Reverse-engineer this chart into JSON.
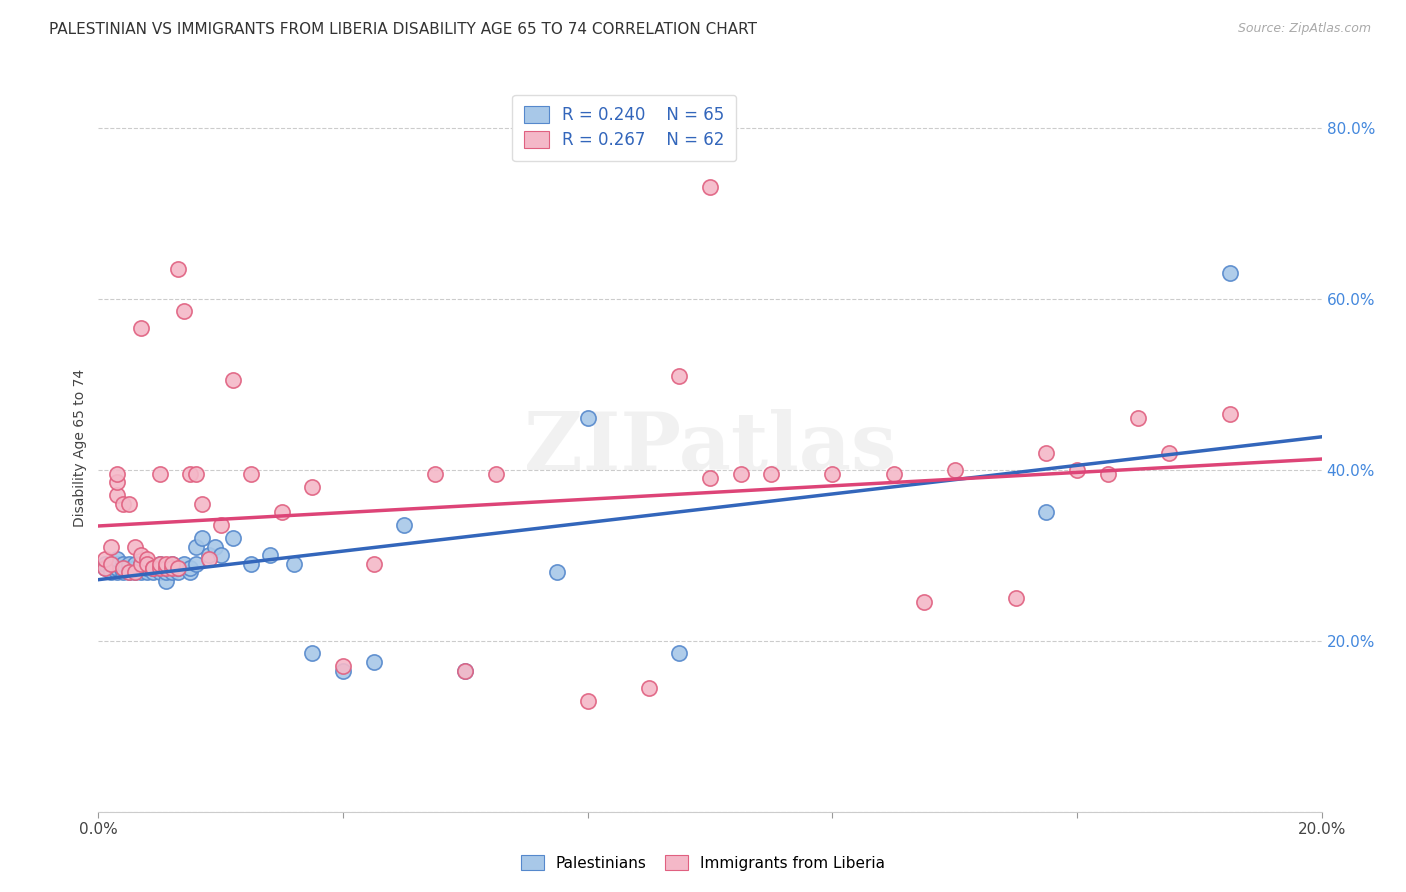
{
  "title": "PALESTINIAN VS IMMIGRANTS FROM LIBERIA DISABILITY AGE 65 TO 74 CORRELATION CHART",
  "source": "Source: ZipAtlas.com",
  "ylabel": "Disability Age 65 to 74",
  "watermark": "ZIPatlas",
  "xlim": [
    0.0,
    0.2
  ],
  "ylim": [
    0.0,
    0.85
  ],
  "xticks": [
    0.0,
    0.04,
    0.08,
    0.12,
    0.16,
    0.2
  ],
  "xticklabels": [
    "0.0%",
    "",
    "",
    "",
    "",
    "20.0%"
  ],
  "yticks": [
    0.0,
    0.2,
    0.4,
    0.6,
    0.8
  ],
  "yticklabels": [
    "",
    "20.0%",
    "40.0%",
    "60.0%",
    "80.0%"
  ],
  "blue_R": 0.24,
  "blue_N": 65,
  "pink_R": 0.267,
  "pink_N": 62,
  "legend_label_blue": "Palestinians",
  "legend_label_pink": "Immigrants from Liberia",
  "blue_color": "#a8c8e8",
  "pink_color": "#f4b8c8",
  "blue_edge_color": "#5588cc",
  "pink_edge_color": "#e06080",
  "blue_line_color": "#3366bb",
  "pink_line_color": "#dd4477",
  "blue_x": [
    0.001,
    0.001,
    0.002,
    0.002,
    0.002,
    0.003,
    0.003,
    0.003,
    0.003,
    0.003,
    0.004,
    0.004,
    0.004,
    0.004,
    0.005,
    0.005,
    0.005,
    0.005,
    0.006,
    0.006,
    0.006,
    0.006,
    0.007,
    0.007,
    0.007,
    0.007,
    0.008,
    0.008,
    0.008,
    0.009,
    0.009,
    0.009,
    0.01,
    0.01,
    0.01,
    0.011,
    0.011,
    0.011,
    0.012,
    0.012,
    0.013,
    0.013,
    0.014,
    0.015,
    0.015,
    0.016,
    0.016,
    0.017,
    0.018,
    0.019,
    0.02,
    0.022,
    0.025,
    0.028,
    0.032,
    0.035,
    0.04,
    0.045,
    0.05,
    0.06,
    0.075,
    0.08,
    0.095,
    0.155,
    0.185
  ],
  "blue_y": [
    0.285,
    0.29,
    0.285,
    0.28,
    0.29,
    0.28,
    0.285,
    0.285,
    0.29,
    0.295,
    0.28,
    0.285,
    0.285,
    0.29,
    0.28,
    0.285,
    0.285,
    0.29,
    0.28,
    0.285,
    0.285,
    0.29,
    0.28,
    0.285,
    0.285,
    0.29,
    0.28,
    0.285,
    0.285,
    0.28,
    0.285,
    0.285,
    0.28,
    0.285,
    0.29,
    0.27,
    0.28,
    0.285,
    0.28,
    0.29,
    0.28,
    0.285,
    0.29,
    0.28,
    0.285,
    0.29,
    0.31,
    0.32,
    0.3,
    0.31,
    0.3,
    0.32,
    0.29,
    0.3,
    0.29,
    0.185,
    0.165,
    0.175,
    0.335,
    0.165,
    0.28,
    0.46,
    0.185,
    0.35,
    0.63
  ],
  "pink_x": [
    0.001,
    0.001,
    0.002,
    0.002,
    0.003,
    0.003,
    0.003,
    0.004,
    0.004,
    0.005,
    0.005,
    0.006,
    0.006,
    0.007,
    0.007,
    0.007,
    0.008,
    0.008,
    0.009,
    0.009,
    0.01,
    0.01,
    0.01,
    0.011,
    0.011,
    0.012,
    0.012,
    0.013,
    0.013,
    0.014,
    0.015,
    0.016,
    0.017,
    0.018,
    0.02,
    0.022,
    0.025,
    0.03,
    0.035,
    0.04,
    0.045,
    0.055,
    0.06,
    0.065,
    0.08,
    0.09,
    0.095,
    0.1,
    0.1,
    0.105,
    0.11,
    0.12,
    0.13,
    0.135,
    0.14,
    0.15,
    0.155,
    0.16,
    0.165,
    0.17,
    0.175,
    0.185
  ],
  "pink_y": [
    0.285,
    0.295,
    0.29,
    0.31,
    0.37,
    0.385,
    0.395,
    0.285,
    0.36,
    0.36,
    0.28,
    0.28,
    0.31,
    0.29,
    0.3,
    0.565,
    0.295,
    0.29,
    0.285,
    0.285,
    0.285,
    0.29,
    0.395,
    0.285,
    0.29,
    0.285,
    0.29,
    0.285,
    0.635,
    0.585,
    0.395,
    0.395,
    0.36,
    0.295,
    0.335,
    0.505,
    0.395,
    0.35,
    0.38,
    0.17,
    0.29,
    0.395,
    0.165,
    0.395,
    0.13,
    0.145,
    0.51,
    0.73,
    0.39,
    0.395,
    0.395,
    0.395,
    0.395,
    0.245,
    0.4,
    0.25,
    0.42,
    0.4,
    0.395,
    0.46,
    0.42,
    0.465
  ],
  "background_color": "#ffffff",
  "grid_color": "#cccccc",
  "title_fontsize": 11,
  "axis_label_fontsize": 10,
  "tick_fontsize": 11,
  "legend_fontsize": 12
}
